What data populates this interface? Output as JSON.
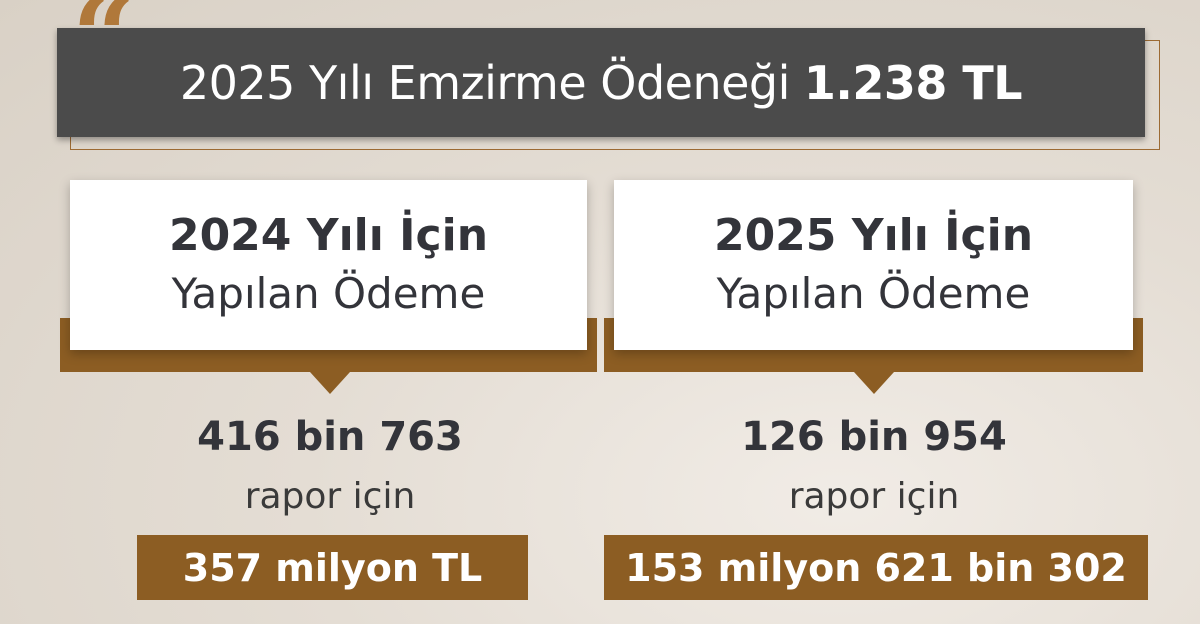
{
  "header": {
    "title_prefix": "2025 Yılı Emzirme Ödeneği",
    "title_amount": "1.238 TL",
    "quote_mark": "“"
  },
  "columns": [
    {
      "heading": "2024 Yılı İçin",
      "subheading": "Yapılan Ödeme",
      "count": "416 bin 763",
      "count_label": "rapor için",
      "amount": "357 milyon TL"
    },
    {
      "heading": "2025 Yılı İçin",
      "subheading": "Yapılan Ödeme",
      "count": "126 bin 954",
      "count_label": "rapor için",
      "amount": "153 milyon 621 bin 302"
    }
  ],
  "colors": {
    "accent": "#8c5d23",
    "title_bar": "#4b4b4b",
    "text": "#33343a"
  }
}
